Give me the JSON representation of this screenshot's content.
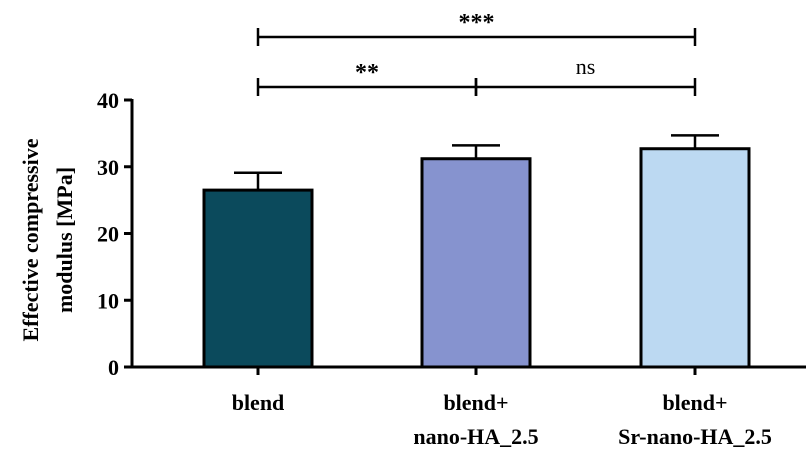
{
  "chart_data": {
    "type": "bar",
    "categories": [
      [
        "blend"
      ],
      [
        "blend+",
        "nano-HA_2.5"
      ],
      [
        "blend+",
        "Sr-nano-HA_2.5"
      ]
    ],
    "values": [
      26.5,
      31.2,
      32.7
    ],
    "errors": [
      2.6,
      2.0,
      2.0
    ],
    "colors": [
      "#0b4a5c",
      "#8693cf",
      "#bcd9f2"
    ],
    "ylabel_lines": [
      "Effective compressive",
      "modulus [MPa]"
    ],
    "ylim": [
      0,
      40
    ],
    "yticks": [
      0,
      10,
      20,
      30,
      40
    ],
    "grid": false,
    "significance": [
      {
        "from": 0,
        "to": 2,
        "label": "***",
        "level": 2
      },
      {
        "from": 0,
        "to": 1,
        "label": "**",
        "level": 1
      },
      {
        "from": 1,
        "to": 2,
        "label": "ns",
        "level": 1
      }
    ]
  }
}
